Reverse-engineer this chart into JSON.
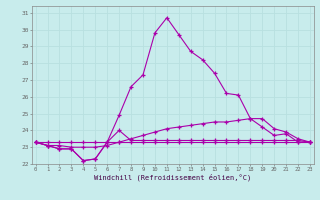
{
  "xlabel": "Windchill (Refroidissement éolien,°C)",
  "bg_color": "#c8ecec",
  "grid_color": "#b8e0e0",
  "line_color": "#aa00aa",
  "hours": [
    0,
    1,
    2,
    3,
    4,
    5,
    6,
    7,
    8,
    9,
    10,
    11,
    12,
    13,
    14,
    15,
    16,
    17,
    18,
    19,
    20,
    21,
    22,
    23
  ],
  "line1": [
    23.3,
    23.1,
    22.9,
    22.9,
    22.2,
    22.3,
    23.3,
    24.9,
    26.6,
    27.3,
    29.8,
    30.7,
    29.7,
    28.7,
    28.2,
    27.4,
    26.2,
    26.1,
    24.7,
    24.2,
    23.7,
    23.8,
    23.3,
    23.3
  ],
  "line2": [
    23.3,
    23.1,
    23.1,
    23.0,
    23.0,
    23.0,
    23.1,
    23.3,
    23.5,
    23.7,
    23.9,
    24.1,
    24.2,
    24.3,
    24.4,
    24.5,
    24.5,
    24.6,
    24.7,
    24.7,
    24.1,
    23.9,
    23.5,
    23.3
  ],
  "line3": [
    23.3,
    23.1,
    22.9,
    22.9,
    22.2,
    22.3,
    23.3,
    24.0,
    23.4,
    23.4,
    23.4,
    23.4,
    23.4,
    23.4,
    23.4,
    23.4,
    23.4,
    23.4,
    23.4,
    23.4,
    23.4,
    23.4,
    23.4,
    23.3
  ],
  "line4": [
    23.3,
    23.3,
    23.3,
    23.3,
    23.3,
    23.3,
    23.3,
    23.3,
    23.3,
    23.3,
    23.3,
    23.3,
    23.3,
    23.3,
    23.3,
    23.3,
    23.3,
    23.3,
    23.3,
    23.3,
    23.3,
    23.3,
    23.3,
    23.3
  ],
  "yticks": [
    22,
    23,
    24,
    25,
    26,
    27,
    28,
    29,
    30,
    31
  ],
  "xticks": [
    0,
    1,
    2,
    3,
    4,
    5,
    6,
    7,
    8,
    9,
    10,
    11,
    12,
    13,
    14,
    15,
    16,
    17,
    18,
    19,
    20,
    21,
    22,
    23
  ],
  "ylim": [
    22,
    31.4
  ],
  "xlim": [
    -0.3,
    23.3
  ]
}
